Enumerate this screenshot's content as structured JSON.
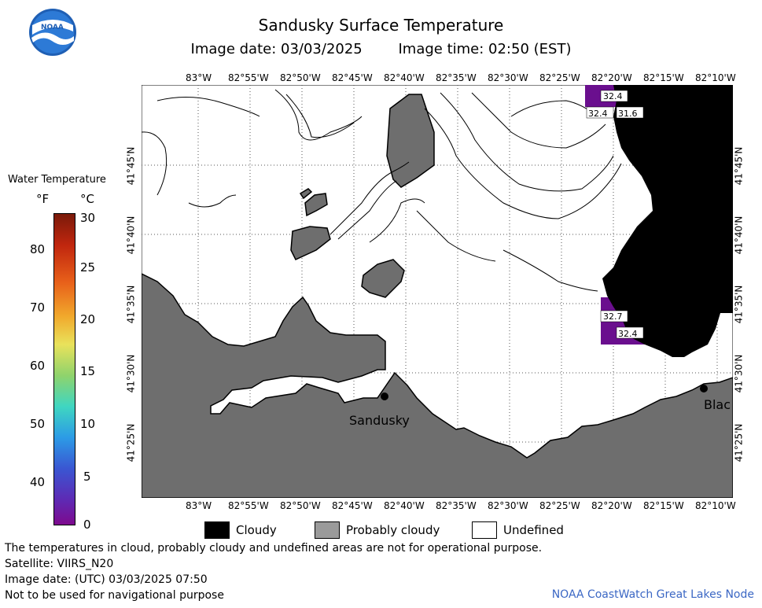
{
  "header": {
    "title": "Sandusky Surface Temperature",
    "image_date": "Image date: 03/03/2025",
    "image_time": "Image time: 02:50 (EST)"
  },
  "logo": {
    "text": "NOAA"
  },
  "colorbar": {
    "title": "Water Temperature",
    "unit_f": "°F",
    "unit_c": "°C",
    "fahrenheit_ticks": [
      "80",
      "70",
      "60",
      "50",
      "40"
    ],
    "celsius_ticks": [
      "30",
      "25",
      "20",
      "15",
      "10",
      "5",
      "0"
    ]
  },
  "map": {
    "top_lon_labels": [
      "83°W",
      "82°55'W",
      "82°50'W",
      "82°45'W",
      "82°40'W",
      "82°35'W",
      "82°30'W",
      "82°25'W",
      "82°20'W",
      "82°15'W",
      "82°10'W"
    ],
    "bottom_lon_labels": [
      "83°W",
      "82°55'W",
      "82°50'W",
      "82°45'W",
      "82°40'W",
      "82°35'W",
      "82°30'W",
      "82°25'W",
      "82°20'W",
      "82°15'W",
      "82°10'W"
    ],
    "lat_labels": [
      "41°45'N",
      "41°40'N",
      "41°35'N",
      "41°30'N",
      "41°25'N"
    ],
    "cities": [
      {
        "name": "Sandusky"
      },
      {
        "name": "Blac"
      }
    ],
    "temperature_labels": [
      "32.4",
      "32.4",
      "31.6",
      "32.7",
      "32.4"
    ],
    "colors": {
      "land": "#6e6e6e",
      "probably_cloudy": "#6e6e6e",
      "cloud": "#000000",
      "cold_water": "#6a0f8e"
    }
  },
  "legend": {
    "cloudy": "Cloudy",
    "probably_cloudy": "Probably cloudy",
    "undefined": "Undefined"
  },
  "footer": {
    "disclaimer": "The temperatures in cloud, probably cloudy and undefined areas are not for operational purpose.",
    "satellite": "Satellite: VIIRS_N20",
    "utc_date": "Image date: (UTC) 03/03/2025  07:50",
    "navigation": "Not to be used for navigational purpose",
    "credit": "NOAA CoastWatch Great Lakes Node"
  }
}
